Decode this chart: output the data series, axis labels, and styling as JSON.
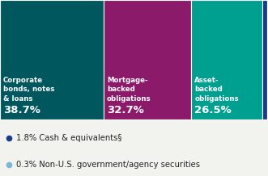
{
  "segments": [
    {
      "label": "Corporate\nbonds, notes\n& loans",
      "value": 38.7,
      "color": "#00575e",
      "pct": "38.7%"
    },
    {
      "label": "Mortgage-\nbacked\nobligations",
      "value": 32.7,
      "color": "#8b1a6b",
      "pct": "32.7%"
    },
    {
      "label": "Asset-\nbacked\nobligations",
      "value": 26.5,
      "color": "#00a090",
      "pct": "26.5%"
    },
    {
      "label": "",
      "value": 1.8,
      "color": "#1a3a8c",
      "pct": ""
    },
    {
      "label": "",
      "value": 0.3,
      "color": "#7ab8d9",
      "pct": ""
    }
  ],
  "legend": [
    {
      "label": "1.8% Cash & equivalents§",
      "color": "#1a3a8c"
    },
    {
      "label": "0.3% Non-U.S. government/agency securities",
      "color": "#7ab8d9"
    }
  ],
  "bg_color": "#f2f2ee",
  "label_fontsize": 6.2,
  "pct_fontsize": 9.5,
  "legend_fontsize": 7.2
}
